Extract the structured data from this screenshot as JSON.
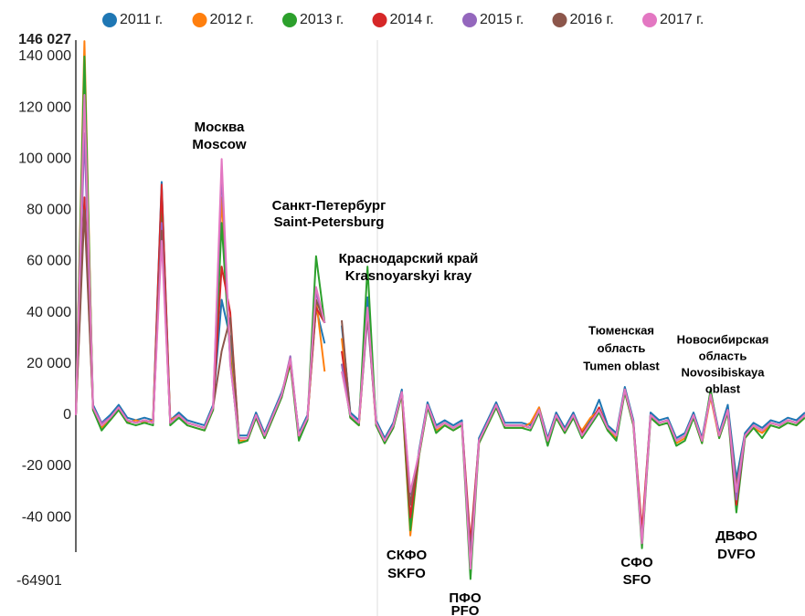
{
  "chart_data": {
    "type": "line",
    "series": [
      {
        "name": "2011 г.",
        "color": "#1f77b4",
        "values": [
          0,
          135000,
          4000,
          -3000,
          0,
          4000,
          -1000,
          -2000,
          -1000,
          -2000,
          91000,
          -2000,
          1000,
          -2000,
          -3000,
          -4000,
          4000,
          45000,
          30000,
          -8000,
          -8000,
          1000,
          -7000,
          1000,
          9000,
          20000,
          -7000,
          0,
          42000,
          28000,
          null,
          35000,
          1000,
          -2000,
          46000,
          -2000,
          -9000,
          -3000,
          10000,
          -41000,
          -14000,
          5000,
          -4000,
          -2000,
          -4000,
          -2000,
          -55000,
          -9000,
          -2000,
          5000,
          -3000,
          -3000,
          -3000,
          -4000,
          3000,
          -9000,
          1000,
          -5000,
          1000,
          -7000,
          -2000,
          6000,
          -4000,
          -7000,
          11000,
          -2000,
          -48000,
          1000,
          -2000,
          -1000,
          -9000,
          -7000,
          1000,
          -9000,
          9000,
          -7000,
          4000,
          -25000,
          -7000,
          -3000,
          -5000,
          -2000,
          -3000,
          -1000,
          -2000,
          1000
        ]
      },
      {
        "name": "2012 г.",
        "color": "#ff7f0e",
        "values": [
          0,
          146000,
          2000,
          -5000,
          -2000,
          2000,
          -3000,
          -2000,
          -3000,
          -2000,
          85000,
          -2000,
          0,
          -4000,
          -5000,
          -6000,
          2000,
          85000,
          25000,
          -10000,
          -10000,
          -1000,
          -9000,
          -1000,
          7000,
          21000,
          -9000,
          -2000,
          45000,
          17000,
          null,
          30000,
          -1000,
          -4000,
          40000,
          -4000,
          -11000,
          -5000,
          8000,
          -47000,
          -16000,
          3000,
          -6000,
          -4000,
          -6000,
          -4000,
          -58000,
          -11000,
          -4000,
          3000,
          -5000,
          -5000,
          -5000,
          -3000,
          3000,
          -11000,
          -1000,
          -7000,
          -1000,
          -6000,
          -1000,
          2000,
          -6000,
          -9000,
          9000,
          -4000,
          -48000,
          -1000,
          -4000,
          -3000,
          -11000,
          -9000,
          -1000,
          -11000,
          7000,
          -9000,
          1000,
          -32000,
          -9000,
          -5000,
          -7000,
          -4000,
          -5000,
          -3000,
          -4000,
          -1000
        ]
      },
      {
        "name": "2013 г.",
        "color": "#2ca02c",
        "values": [
          0,
          140000,
          2000,
          -6000,
          -2000,
          2000,
          -3000,
          -4000,
          -3000,
          -4000,
          80000,
          -4000,
          -1000,
          -4000,
          -5000,
          -6000,
          2000,
          75000,
          22000,
          -11000,
          -10000,
          -1000,
          -9000,
          -1000,
          7000,
          20000,
          -10000,
          -2000,
          62000,
          36000,
          null,
          20000,
          -1000,
          -4000,
          58000,
          -4000,
          -11000,
          -5000,
          8000,
          -45000,
          -16000,
          3000,
          -7000,
          -4000,
          -6000,
          -4000,
          -64000,
          -11000,
          -4000,
          3000,
          -5000,
          -5000,
          -5000,
          -6000,
          1000,
          -12000,
          -1000,
          -7000,
          -1000,
          -9000,
          -4000,
          1000,
          -6000,
          -10000,
          9000,
          -4000,
          -52000,
          -1000,
          -4000,
          -3000,
          -12000,
          -10000,
          -1000,
          -11000,
          10000,
          -9000,
          1000,
          -38000,
          -9000,
          -5000,
          -9000,
          -4000,
          -5000,
          -3000,
          -4000,
          -1000
        ]
      },
      {
        "name": "2014 г.",
        "color": "#d62728",
        "values": [
          0,
          85000,
          3000,
          -4000,
          -1000,
          3000,
          -2000,
          -3000,
          -2000,
          -3000,
          90000,
          -3000,
          0,
          -3000,
          -4000,
          -5000,
          3000,
          58000,
          40000,
          -9000,
          -9000,
          0,
          -8000,
          0,
          8000,
          21000,
          -8000,
          -1000,
          42000,
          36000,
          null,
          25000,
          0,
          -3000,
          40000,
          -3000,
          -10000,
          -4000,
          9000,
          -40000,
          -15000,
          4000,
          -5000,
          -3000,
          -5000,
          -3000,
          -50000,
          -10000,
          -3000,
          4000,
          -4000,
          -4000,
          -4000,
          -5000,
          2000,
          -10000,
          0,
          -6000,
          0,
          -7000,
          -3000,
          3000,
          -5000,
          -8000,
          10000,
          -3000,
          -45000,
          0,
          -3000,
          -2000,
          -10000,
          -8000,
          0,
          -10000,
          8000,
          -8000,
          2000,
          -35000,
          -8000,
          -4000,
          -6000,
          -3000,
          -4000,
          -2000,
          -3000,
          0
        ]
      },
      {
        "name": "2015 г.",
        "color": "#9467bd",
        "values": [
          0,
          110000,
          3000,
          -3000,
          -1000,
          3000,
          -2000,
          -3000,
          -2000,
          -3000,
          75000,
          -3000,
          0,
          -3000,
          -4000,
          -5000,
          3000,
          95000,
          20000,
          -9000,
          -9000,
          0,
          -8000,
          0,
          8000,
          23000,
          -8000,
          -1000,
          48000,
          36000,
          null,
          20000,
          0,
          -3000,
          38000,
          -3000,
          -10000,
          -4000,
          9000,
          -31000,
          -15000,
          4000,
          -5000,
          -3000,
          -5000,
          -3000,
          -55000,
          -10000,
          -3000,
          4000,
          -4000,
          -4000,
          -4000,
          -5000,
          2000,
          -10000,
          0,
          -6000,
          0,
          -8000,
          -3000,
          2000,
          -5000,
          -8000,
          10000,
          -3000,
          -50000,
          0,
          -3000,
          -2000,
          -10000,
          -8000,
          0,
          -10000,
          8000,
          -8000,
          2000,
          -33000,
          -8000,
          -4000,
          -6000,
          -3000,
          -4000,
          -2000,
          -3000,
          0
        ]
      },
      {
        "name": "2016 г.",
        "color": "#8c564b",
        "values": [
          0,
          80000,
          3000,
          -4000,
          -1000,
          3000,
          -2000,
          -3000,
          -2000,
          -3000,
          72000,
          -3000,
          0,
          -3000,
          -4000,
          -5000,
          3000,
          25000,
          38000,
          -9000,
          -9000,
          0,
          -8000,
          0,
          8000,
          22000,
          -8000,
          -1000,
          45000,
          36000,
          null,
          37000,
          0,
          -3000,
          40000,
          -3000,
          -10000,
          -4000,
          9000,
          -35000,
          -15000,
          4000,
          -5000,
          -3000,
          -5000,
          -3000,
          -58000,
          -10000,
          -3000,
          4000,
          -4000,
          -4000,
          -4000,
          -5000,
          2000,
          -10000,
          0,
          -6000,
          0,
          -8000,
          -3000,
          2000,
          -5000,
          -8000,
          10000,
          -3000,
          -50000,
          0,
          -3000,
          -2000,
          -10000,
          -8000,
          0,
          -10000,
          8000,
          -8000,
          2000,
          -28000,
          -8000,
          -4000,
          -6000,
          -3000,
          -4000,
          -2000,
          -3000,
          0
        ]
      },
      {
        "name": "2017 г.",
        "color": "#e377c2",
        "values": [
          0,
          125000,
          3000,
          -4000,
          -1000,
          3000,
          -2000,
          -3000,
          -2000,
          -3000,
          68000,
          -3000,
          0,
          -3000,
          -4000,
          -5000,
          3000,
          100000,
          20000,
          -9000,
          -9000,
          0,
          -8000,
          0,
          8000,
          22000,
          -8000,
          -1000,
          50000,
          36000,
          null,
          17000,
          0,
          -3000,
          42000,
          -3000,
          -10000,
          -4000,
          9000,
          -30000,
          -15000,
          4000,
          -5000,
          -3000,
          -5000,
          -3000,
          -60000,
          -10000,
          -3000,
          4000,
          -4000,
          -4000,
          -4000,
          -5000,
          2000,
          -10000,
          0,
          -6000,
          0,
          -8000,
          -3000,
          2000,
          -5000,
          -8000,
          10000,
          -3000,
          -50000,
          0,
          -3000,
          -2000,
          -10000,
          -8000,
          0,
          -10000,
          8000,
          -8000,
          2000,
          -30000,
          -8000,
          -4000,
          -6000,
          -3000,
          -4000,
          -2000,
          -3000,
          0
        ]
      }
    ],
    "ylim": [
      -64901,
      146027
    ],
    "yticks": [
      {
        "value": 146027,
        "label": "146 027"
      },
      {
        "value": 140000,
        "label": "140 000"
      },
      {
        "value": 120000,
        "label": "120 000"
      },
      {
        "value": 100000,
        "label": "100 000"
      },
      {
        "value": 80000,
        "label": "80 000"
      },
      {
        "value": 60000,
        "label": "60 000"
      },
      {
        "value": 40000,
        "label": "40 000"
      },
      {
        "value": 20000,
        "label": "20 000"
      },
      0,
      {
        "value": -20000,
        "label": "-20 000"
      },
      {
        "value": -40000,
        "label": "-40 000"
      },
      -64901
    ],
    "grid": false,
    "legend": "top",
    "annotations": [
      {
        "lines": [
          "Москва",
          "Moscow"
        ]
      },
      {
        "lines": [
          "Санкт-Петербург",
          "Saint-Petersburg"
        ]
      },
      {
        "lines": [
          "Краснодарский край",
          "Krasnoyarskyi kray"
        ]
      },
      {
        "lines": [
          "Тюменская",
          "область",
          "Tumen oblast"
        ]
      },
      {
        "lines": [
          "Новосибирская",
          "область",
          "Novosibiskaya",
          "oblast"
        ]
      },
      {
        "lines": [
          "СКФО",
          "SKFO"
        ]
      },
      {
        "lines": [
          "ПФО",
          "PFO"
        ]
      },
      {
        "lines": [
          "СФО",
          "SFO"
        ]
      },
      {
        "lines": [
          "ДВФО",
          "DVFO"
        ]
      }
    ]
  }
}
